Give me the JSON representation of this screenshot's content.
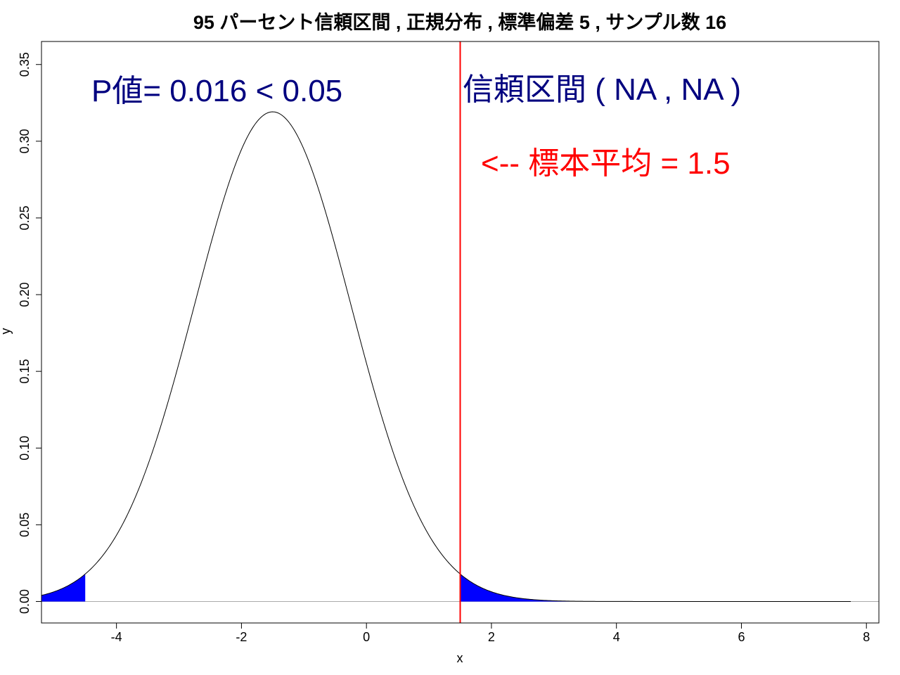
{
  "chart_data": {
    "type": "area",
    "title": "95 パーセント信頼区間 , 正規分布 , 標準偏差 5 , サンプル数 16",
    "xlabel": "x",
    "ylabel": "y",
    "xlim": [
      -5.2,
      8.2
    ],
    "ylim": [
      -0.014,
      0.365
    ],
    "x_ticks": [
      -4,
      -2,
      0,
      2,
      4,
      6,
      8
    ],
    "y_ticks": [
      0.0,
      0.05,
      0.1,
      0.15,
      0.2,
      0.25,
      0.3,
      0.35
    ],
    "x_tick_labels": [
      "-4",
      "-2",
      "0",
      "2",
      "4",
      "6",
      "8"
    ],
    "y_tick_labels": [
      "0.00",
      "0.05",
      "0.10",
      "0.15",
      "0.20",
      "0.25",
      "0.30",
      "0.35"
    ],
    "curve": {
      "distribution": "normal",
      "mean": -1.5,
      "sd": 1.25,
      "x_range": [
        -5.2,
        7.75
      ]
    },
    "shaded_regions": [
      {
        "name": "left-tail",
        "from": -5.2,
        "to": -4.5,
        "color": "#0000ff"
      },
      {
        "name": "right-tail",
        "from": 1.5,
        "to": 7.75,
        "color": "#0000ff"
      }
    ],
    "vertical_line": {
      "x": 1.5,
      "color": "#ff0000"
    },
    "annotations": {
      "p_value": "P値= 0.016 < 0.05",
      "confidence_interval": "信頼区間 ( NA , NA )",
      "sample_mean": "<-- 標本平均 = 1.5"
    },
    "grid": false
  }
}
